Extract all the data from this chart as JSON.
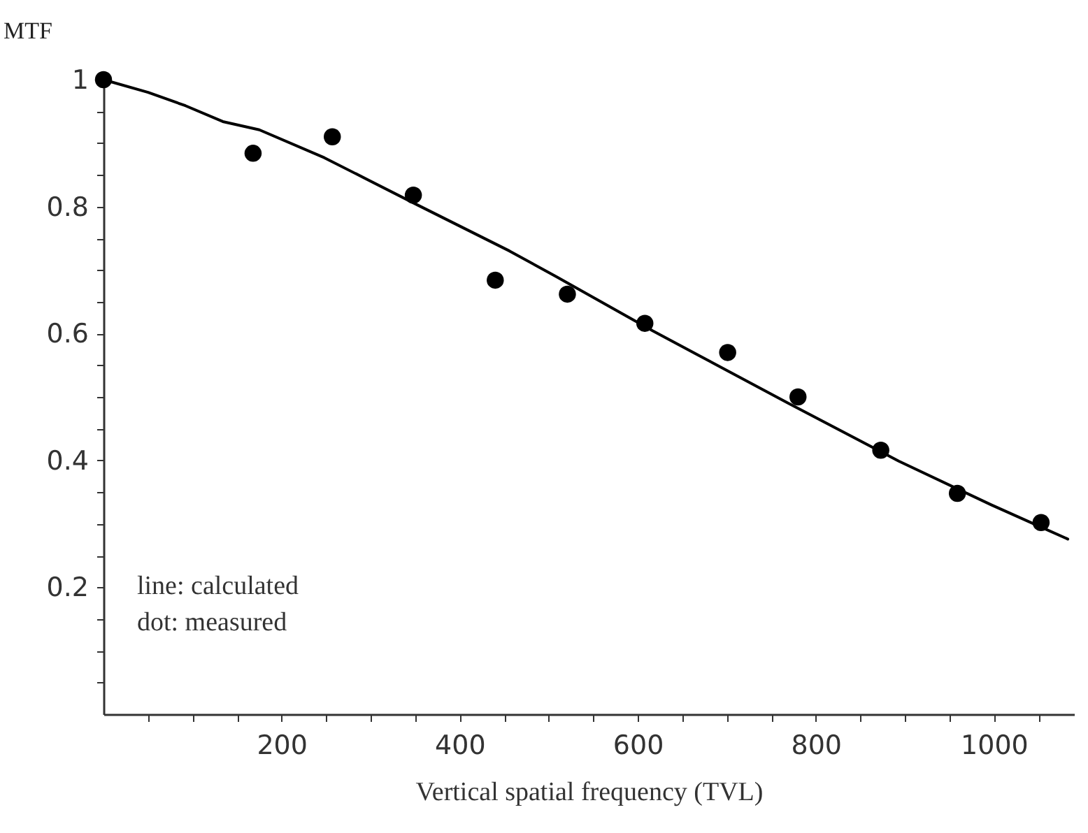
{
  "chart_data": {
    "type": "line",
    "xlabel": "Vertical spatial frequency (TVL)",
    "ylabel": "MTF",
    "annotations": [
      "line: calculated",
      "dot: measured"
    ],
    "xlim": [
      0,
      1090
    ],
    "ylim": [
      0,
      1
    ],
    "xticks": [
      {
        "value": 50,
        "label": null
      },
      {
        "value": 100,
        "label": null
      },
      {
        "value": 150,
        "label": null
      },
      200,
      {
        "value": 250,
        "label": null
      },
      {
        "value": 300,
        "label": null
      },
      {
        "value": 350,
        "label": null
      },
      400,
      {
        "value": 450,
        "label": null
      },
      {
        "value": 500,
        "label": null
      },
      {
        "value": 550,
        "label": null
      },
      600,
      {
        "value": 650,
        "label": null
      },
      {
        "value": 700,
        "label": null
      },
      {
        "value": 750,
        "label": null
      },
      800,
      {
        "value": 850,
        "label": null
      },
      {
        "value": 900,
        "label": null
      },
      {
        "value": 950,
        "label": null
      },
      1000,
      {
        "value": 1050,
        "label": null
      }
    ],
    "yticks": [
      {
        "value": 0.05,
        "label": null
      },
      {
        "value": 0.1,
        "label": null
      },
      {
        "value": 0.15,
        "label": null
      },
      0.2,
      {
        "value": 0.25,
        "label": null
      },
      {
        "value": 0.3,
        "label": null
      },
      {
        "value": 0.35,
        "label": null
      },
      0.4,
      {
        "value": 0.45,
        "label": null
      },
      {
        "value": 0.5,
        "label": null
      },
      {
        "value": 0.55,
        "label": null
      },
      0.6,
      {
        "value": 0.65,
        "label": null
      },
      {
        "value": 0.7,
        "label": null
      },
      {
        "value": 0.75,
        "label": null
      },
      0.8,
      {
        "value": 0.85,
        "label": null
      },
      {
        "value": 0.9,
        "label": null
      },
      {
        "value": 0.95,
        "label": null
      },
      1
    ],
    "grid": false,
    "series": [
      {
        "color": "#000000",
        "marker": "none",
        "line_style": "solid",
        "x": [
          0,
          50,
          92,
          134,
          175,
          248,
          352,
          456,
          508,
          617,
          768,
          893,
          997,
          1083
        ],
        "values": [
          1,
          0.98,
          0.959,
          0.934,
          0.921,
          0.877,
          0.803,
          0.73,
          0.69,
          0.604,
          0.491,
          0.399,
          0.33,
          0.276
        ]
      },
      {
        "type": "scatter",
        "color": "#000000",
        "marker": "circle",
        "x": [
          0,
          168,
          257,
          348,
          440,
          521,
          608,
          701,
          780,
          873,
          959,
          1053
        ],
        "values": [
          1,
          0.884,
          0.91,
          0.818,
          0.684,
          0.662,
          0.616,
          0.57,
          0.5,
          0.416,
          0.348,
          0.302
        ]
      }
    ]
  }
}
